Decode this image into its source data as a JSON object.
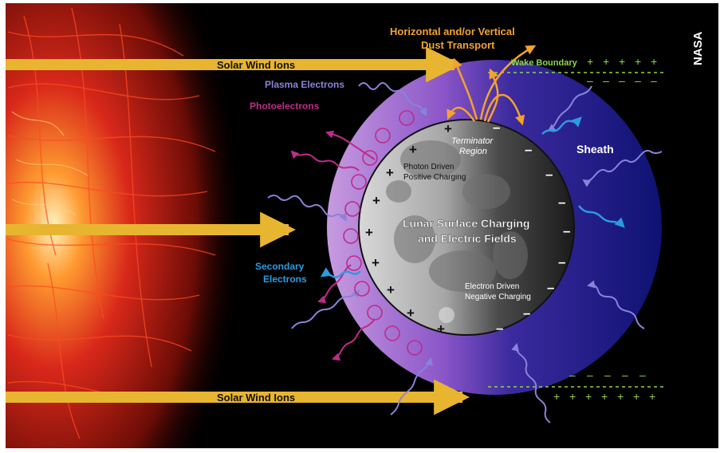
{
  "credit": "NASA",
  "labels": {
    "solar_wind_top": "Solar Wind Ions",
    "solar_wind_bottom": "Solar Wind Ions",
    "dust_line1": "Horizontal and/or Vertical",
    "dust_line2": "Dust Transport",
    "wake_boundary": "Wake Boundary",
    "plasma_electrons": "Plasma Electrons",
    "photoelectrons": "Photoelectrons",
    "terminator_line1": "Terminator",
    "terminator_line2": "Region",
    "sheath": "Sheath",
    "photon_line1": "Photon Driven",
    "photon_line2": "Positive Charging",
    "center_line1": "Lunar Surface Charging",
    "center_line2": "and Electric Fields",
    "secondary_line1": "Secondary",
    "secondary_line2": "Electrons",
    "electron_line1": "Electron Driven",
    "electron_line2": "Negative Charging"
  },
  "symbols": {
    "plus": "+",
    "minus": "–"
  },
  "colors": {
    "solar_arrow": "#e8b530",
    "dust": "#f2a32c",
    "wake": "#8fd44a",
    "plasma": "#8a82d8",
    "photo": "#c02a8a",
    "secondary": "#2b9be0",
    "sheath": "#11116a",
    "sun": "#d8281a"
  }
}
